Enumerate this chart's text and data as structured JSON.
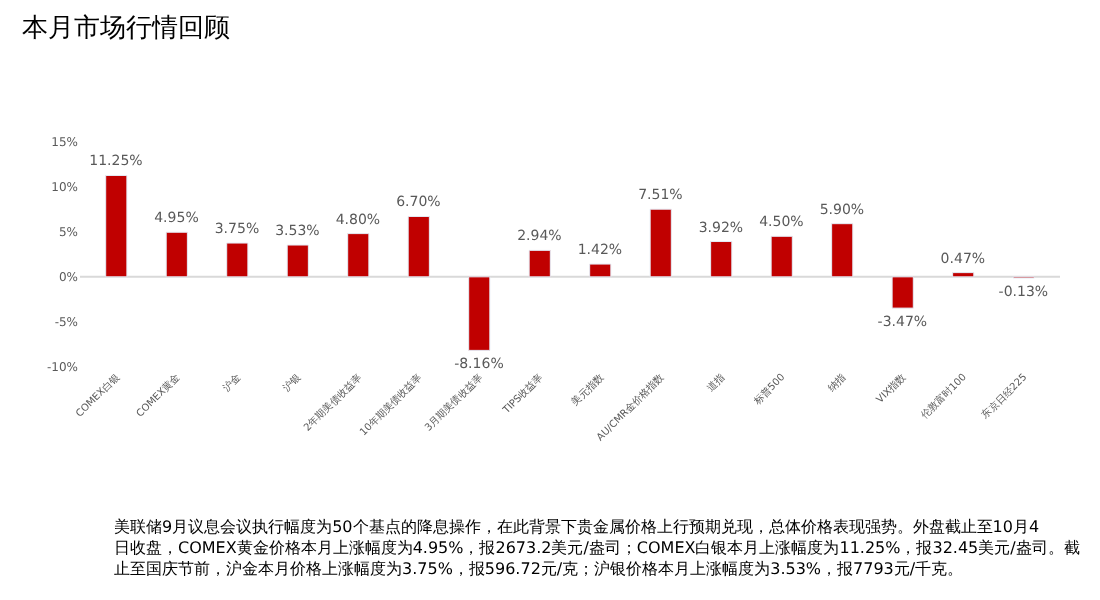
{
  "chart_data": {
    "type": "bar",
    "title": "本月市场行情回顾",
    "categories": [
      "COMEX白银",
      "COMEX黄金",
      "沪金",
      "沪银",
      "2年期美债收益率",
      "10年期美债收益率",
      "3月期美债收益率",
      "TIPS收益率",
      "美元指数",
      "AU/CMR金价格指数",
      "道指",
      "标普500",
      "纳指",
      "VIX指数",
      "伦敦富时100",
      "东京日经225"
    ],
    "values": [
      11.25,
      4.95,
      3.75,
      3.53,
      4.8,
      6.7,
      -8.16,
      2.94,
      1.42,
      7.51,
      3.92,
      4.5,
      5.9,
      -3.47,
      0.47,
      -0.13
    ],
    "value_labels": [
      "11.25%",
      "4.95%",
      "3.75%",
      "3.53%",
      "4.80%",
      "6.70%",
      "-8.16%",
      "2.94%",
      "1.42%",
      "7.51%",
      "3.92%",
      "4.50%",
      "5.90%",
      "-3.47%",
      "0.47%",
      "-0.13%"
    ],
    "color": "#c00000",
    "ylim": [
      -10,
      15
    ],
    "yticks": [
      {
        "value": -10,
        "label": "-10%"
      },
      {
        "value": -5,
        "label": "-5%"
      },
      {
        "value": 0,
        "label": "0%"
      },
      {
        "value": 5,
        "label": "5%"
      },
      {
        "value": 10,
        "label": "10%"
      },
      {
        "value": 15,
        "label": "15%"
      }
    ],
    "grid": false,
    "ref_lines": [
      {
        "axis": "y",
        "value": 0,
        "color": "#d9d9d9"
      }
    ],
    "annotations": [
      "美联储9月议息会议执行幅度为50个基点的降息操作，在此背景下贵金属价格上行预期兑现，总体价格表现强势。外盘截止至10月4日收盘，COMEX黄金价格本月上涨幅度为4.95%，报2673.2美元/盎司；COMEX白银本月上涨幅度为11.25%，报32.45美元/盎司。截止至国庆节前，沪金本月价格上涨幅度为3.75%，报596.72元/克；沪银价格本月上涨幅度为3.53%，报7793元/千克。"
    ]
  }
}
